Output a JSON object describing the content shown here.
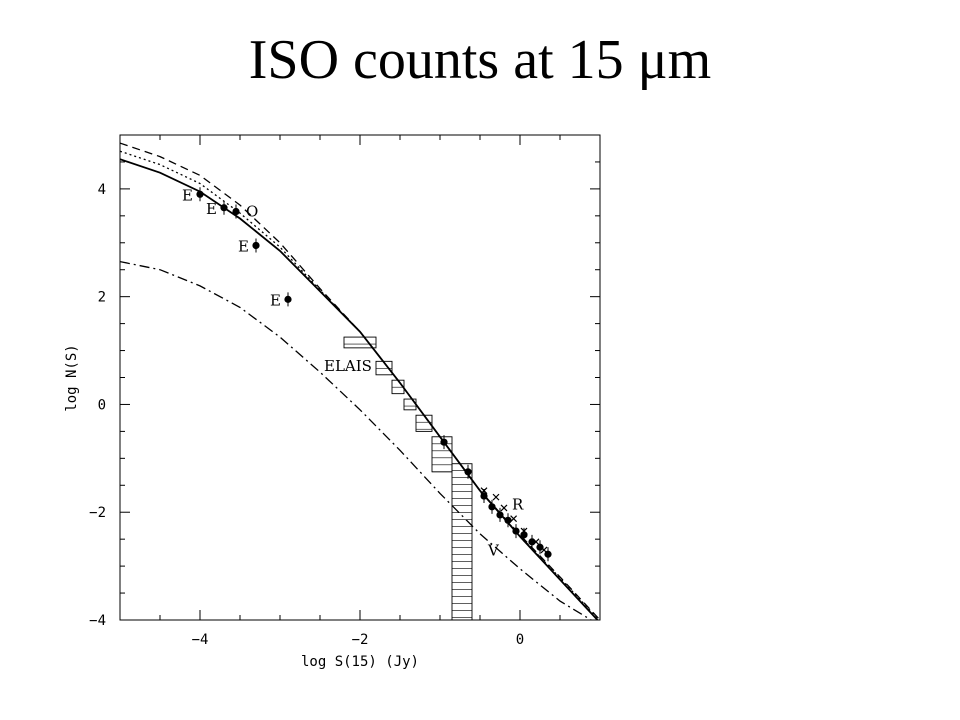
{
  "slide": {
    "title": "ISO counts at 15 μm"
  },
  "chart_data": {
    "type": "line",
    "xlabel": "log S(15) (Jy)",
    "ylabel": "log N(S)",
    "xlim": [
      -5,
      1
    ],
    "ylim": [
      -4,
      5
    ],
    "x_ticks": [
      -4,
      -2,
      0
    ],
    "x_tick_labels": [
      "−4",
      "−2",
      "0"
    ],
    "y_ticks": [
      -4,
      -2,
      0,
      2,
      4
    ],
    "y_tick_labels": [
      "−4",
      "−2",
      "0",
      "2",
      "4"
    ],
    "grid": false,
    "series": [
      {
        "style": "solid",
        "x": [
          -5,
          -4.5,
          -4,
          -3.5,
          -3,
          -2.5,
          -2,
          -1.5,
          -1,
          -0.5,
          0,
          0.5,
          1
        ],
        "y": [
          4.55,
          4.3,
          3.95,
          3.45,
          2.85,
          2.1,
          1.35,
          0.4,
          -0.6,
          -1.6,
          -2.45,
          -3.25,
          -4.05
        ]
      },
      {
        "style": "dashed",
        "x": [
          -5,
          -4.5,
          -4,
          -3.5,
          -3,
          -2.5,
          -2,
          -1.5,
          -1,
          -0.5,
          0,
          0.5,
          1
        ],
        "y": [
          4.85,
          4.6,
          4.25,
          3.7,
          3.0,
          2.15,
          1.35,
          0.4,
          -0.6,
          -1.6,
          -2.42,
          -3.2,
          -4.0
        ]
      },
      {
        "style": "dotted",
        "x": [
          -5,
          -4.5,
          -4,
          -3.5,
          -3,
          -2.5,
          -2,
          -1.5,
          -1,
          -0.5,
          0,
          0.5,
          1
        ],
        "y": [
          4.7,
          4.45,
          4.1,
          3.55,
          2.92,
          2.12,
          1.35,
          0.4,
          -0.6,
          -1.6,
          -2.44,
          -3.22,
          -4.02
        ]
      },
      {
        "style": "dash-dot",
        "x": [
          -5,
          -4.5,
          -4,
          -3.5,
          -3,
          -2.5,
          -2,
          -1.5,
          -1,
          -0.5,
          0,
          0.5,
          1
        ],
        "y": [
          2.65,
          2.5,
          2.2,
          1.8,
          1.25,
          0.6,
          -0.1,
          -0.85,
          -1.65,
          -2.4,
          -3.05,
          -3.65,
          -4.1
        ]
      }
    ],
    "points_filled": [
      {
        "x": -4.0,
        "y": 3.9,
        "label": "E"
      },
      {
        "x": -3.7,
        "y": 3.65,
        "label": "E"
      },
      {
        "x": -3.3,
        "y": 2.95,
        "label": "E"
      },
      {
        "x": -2.9,
        "y": 1.95,
        "label": "E"
      },
      {
        "x": -3.55,
        "y": 3.58,
        "label": "O"
      },
      {
        "x": -0.95,
        "y": -0.7,
        "label": ""
      },
      {
        "x": -0.65,
        "y": -1.25,
        "label": ""
      },
      {
        "x": -0.45,
        "y": -1.7,
        "label": ""
      },
      {
        "x": -0.35,
        "y": -1.9,
        "label": ""
      },
      {
        "x": -0.25,
        "y": -2.05,
        "label": ""
      },
      {
        "x": -0.15,
        "y": -2.15,
        "label": ""
      },
      {
        "x": -0.05,
        "y": -2.35,
        "label": ""
      },
      {
        "x": 0.05,
        "y": -2.42,
        "label": ""
      },
      {
        "x": 0.15,
        "y": -2.55,
        "label": ""
      },
      {
        "x": 0.25,
        "y": -2.65,
        "label": ""
      },
      {
        "x": 0.35,
        "y": -2.78,
        "label": ""
      }
    ],
    "points_cross": [
      {
        "x": -0.45,
        "y": -1.6
      },
      {
        "x": -0.3,
        "y": -1.72
      },
      {
        "x": -0.2,
        "y": -1.92
      },
      {
        "x": -0.08,
        "y": -2.12
      },
      {
        "x": 0.05,
        "y": -2.35
      },
      {
        "x": 0.2,
        "y": -2.55
      },
      {
        "x": 0.3,
        "y": -2.7
      }
    ],
    "elais_histogram": [
      {
        "x0": -2.2,
        "x1": -1.8,
        "y0": 1.05,
        "y1": 1.25
      },
      {
        "x0": -1.8,
        "x1": -1.6,
        "y0": 0.55,
        "y1": 0.8
      },
      {
        "x0": -1.6,
        "x1": -1.45,
        "y0": 0.2,
        "y1": 0.45
      },
      {
        "x0": -1.45,
        "x1": -1.3,
        "y0": -0.1,
        "y1": 0.1
      },
      {
        "x0": -1.3,
        "x1": -1.1,
        "y0": -0.5,
        "y1": -0.2
      },
      {
        "x0": -1.1,
        "x1": -0.85,
        "y0": -1.25,
        "y1": -0.6
      },
      {
        "x0": -0.85,
        "x1": -0.6,
        "y0": -4,
        "y1": -1.1
      }
    ],
    "annotations": [
      {
        "text": "ELAIS",
        "x": -2.45,
        "y": 0.62
      },
      {
        "text": "R",
        "x": -0.1,
        "y": -1.95
      },
      {
        "text": "V",
        "x": -0.4,
        "y": -2.8
      }
    ]
  }
}
